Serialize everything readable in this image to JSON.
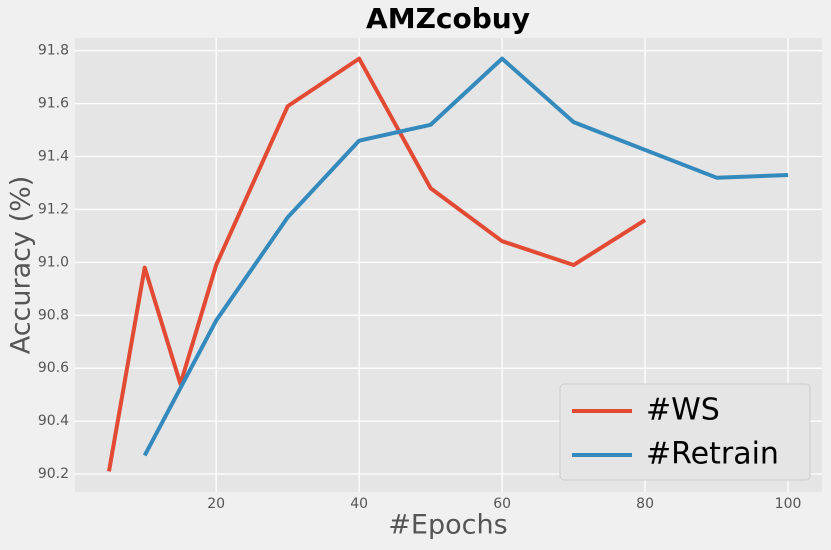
{
  "chart_data": {
    "type": "line",
    "title": "AMZcobuy",
    "xlabel": "#Epochs",
    "ylabel": "Accuracy (%)",
    "series": [
      {
        "name": "#WS",
        "color": "#E24A33",
        "x": [
          5,
          10,
          15,
          20,
          30,
          40,
          50,
          60,
          70,
          80
        ],
        "values": [
          90.21,
          90.98,
          90.54,
          90.99,
          91.59,
          91.77,
          91.28,
          91.08,
          90.99,
          91.16
        ]
      },
      {
        "name": "#Retrain",
        "color": "#348ABD",
        "x": [
          10,
          20,
          30,
          40,
          50,
          60,
          70,
          90,
          100
        ],
        "values": [
          90.27,
          90.78,
          91.17,
          91.46,
          91.52,
          91.77,
          91.53,
          91.32,
          91.33
        ]
      }
    ],
    "xlim": [
      0.25,
      104.75
    ],
    "xticks": [
      20,
      40,
      60,
      80,
      100
    ],
    "ylim": [
      90.132,
      91.848
    ],
    "yticks": [
      {
        "value": 90.2,
        "label": "90.2"
      },
      {
        "value": 90.4,
        "label": "90.4"
      },
      {
        "value": 90.6,
        "label": "90.6"
      },
      {
        "value": 90.8,
        "label": "90.8"
      },
      {
        "value": 91.0,
        "label": "91.0"
      },
      {
        "value": 91.2,
        "label": "91.2"
      },
      {
        "value": 91.4,
        "label": "91.4"
      },
      {
        "value": 91.6,
        "label": "91.6"
      },
      {
        "value": 91.8,
        "label": "91.8"
      }
    ],
    "grid": true,
    "legend": "lower right"
  }
}
